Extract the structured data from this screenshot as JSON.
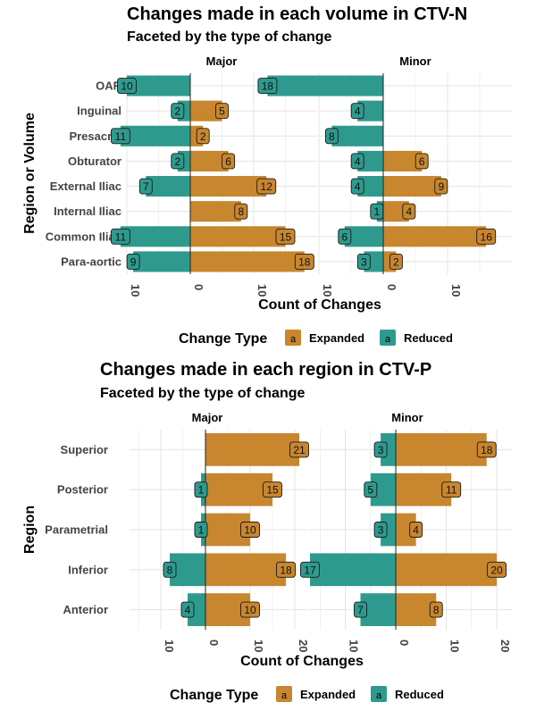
{
  "colors": {
    "expanded": "#C8862E",
    "reduced": "#2E9A8E",
    "grid": "#E6E6E6",
    "zero": "#222222"
  },
  "legend": {
    "title": "Change Type",
    "key_glyph": "a",
    "expanded_label": "Expanded",
    "reduced_label": "Reduced"
  },
  "chart_data": [
    {
      "type": "bar",
      "orientation": "horizontal",
      "title": "Changes made in each volume in CTV-N",
      "subtitle": "Faceted by the type of change",
      "xlabel": "Count of Changes",
      "ylabel": "Region or Volume",
      "categories": [
        "OAR",
        "Inguinal",
        "Presacral",
        "Obturator",
        "External Iliac",
        "Internal Iliac",
        "Common Iliac",
        "Para-aortic"
      ],
      "xlim": [
        -10,
        20
      ],
      "x_ticks": [
        -10,
        0,
        10
      ],
      "x_tick_labels": [
        "10",
        "0",
        "10"
      ],
      "facets": [
        {
          "name": "Major",
          "series": [
            {
              "name": "Expanded",
              "values": [
                0,
                5,
                2,
                6,
                12,
                8,
                15,
                18
              ]
            },
            {
              "name": "Reduced",
              "values": [
                10,
                2,
                11,
                2,
                7,
                0,
                11,
                9
              ]
            }
          ]
        },
        {
          "name": "Minor",
          "series": [
            {
              "name": "Expanded",
              "values": [
                0,
                0,
                0,
                6,
                9,
                4,
                16,
                2
              ]
            },
            {
              "name": "Reduced",
              "values": [
                18,
                4,
                8,
                4,
                4,
                1,
                6,
                3
              ]
            }
          ]
        }
      ]
    },
    {
      "type": "bar",
      "orientation": "horizontal",
      "title": "Changes made in each region in CTV-P",
      "subtitle": "Faceted by the type of change",
      "xlabel": "Count of Changes",
      "ylabel": "Region",
      "categories": [
        "Superior",
        "Posterior",
        "Parametrial",
        "Inferior",
        "Anterior"
      ],
      "xlim": [
        -17,
        23
      ],
      "x_ticks": [
        -10,
        0,
        10,
        20
      ],
      "x_tick_labels": [
        "10",
        "0",
        "10",
        "20"
      ],
      "facets": [
        {
          "name": "Major",
          "series": [
            {
              "name": "Expanded",
              "values": [
                21,
                15,
                10,
                18,
                10
              ]
            },
            {
              "name": "Reduced",
              "values": [
                0,
                1,
                1,
                8,
                4
              ]
            }
          ]
        },
        {
          "name": "Minor",
          "series": [
            {
              "name": "Expanded",
              "values": [
                18,
                11,
                4,
                20,
                8
              ]
            },
            {
              "name": "Reduced",
              "values": [
                3,
                5,
                3,
                17,
                7
              ]
            }
          ]
        }
      ]
    }
  ]
}
